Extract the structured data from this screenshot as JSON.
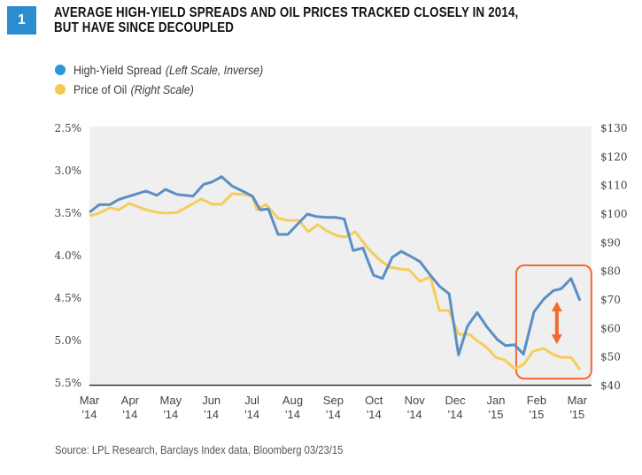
{
  "figure": {
    "number": "1",
    "title_line1": "AVERAGE HIGH-YIELD SPREADS AND OIL PRICES TRACKED CLOSELY IN 2014,",
    "title_line2": "BUT HAVE SINCE DECOUPLED",
    "source": "Source: LPL Research, Barclays Index data, Bloomberg   03/23/15"
  },
  "legend": [
    {
      "label": "High-Yield Spread",
      "note": "(Left Scale, Inverse)",
      "color": "#5b8ec4"
    },
    {
      "label": "Price of Oil",
      "note": "(Right Scale)",
      "color": "#f4cd5a"
    }
  ],
  "colors": {
    "badge": "#2b8dd0",
    "plot_bg": "#efefef",
    "highlight": "#f26b32",
    "spread": "#5b8ec4",
    "oil": "#f4cd5a"
  },
  "chart_data": {
    "type": "line",
    "title": "Average High-Yield Spreads and Oil Prices Tracked Closely in 2014, But Have Since Decoupled",
    "x_unit": "months since Mar 2014",
    "x_range": [
      0,
      12.2
    ],
    "x_ticks": [
      {
        "pos": 0,
        "line1": "Mar",
        "line2": "'14"
      },
      {
        "pos": 1,
        "line1": "Apr",
        "line2": "'14"
      },
      {
        "pos": 2,
        "line1": "May",
        "line2": "'14"
      },
      {
        "pos": 3,
        "line1": "Jun",
        "line2": "'14"
      },
      {
        "pos": 4,
        "line1": "Jul",
        "line2": "'14"
      },
      {
        "pos": 5,
        "line1": "Aug",
        "line2": "'14"
      },
      {
        "pos": 6,
        "line1": "Sep",
        "line2": "'14"
      },
      {
        "pos": 7,
        "line1": "Oct",
        "line2": "'14"
      },
      {
        "pos": 8,
        "line1": "Nov",
        "line2": "'14"
      },
      {
        "pos": 9,
        "line1": "Dec",
        "line2": "'14"
      },
      {
        "pos": 10,
        "line1": "Jan",
        "line2": "'15"
      },
      {
        "pos": 11,
        "line1": "Feb",
        "line2": "'15"
      },
      {
        "pos": 12,
        "line1": "Mar",
        "line2": "'15"
      }
    ],
    "y_left": {
      "label": "High-Yield Spread (Left Scale, Inverse)",
      "range": [
        2.5,
        5.5
      ],
      "inverse": true,
      "ticks": [
        "2.5%",
        "3.0%",
        "3.5%",
        "4.0%",
        "4.5%",
        "5.0%",
        "5.5%"
      ],
      "tick_values": [
        2.5,
        3.0,
        3.5,
        4.0,
        4.5,
        5.0,
        5.5
      ]
    },
    "y_right": {
      "label": "Price of Oil (Right Scale)",
      "range": [
        40,
        130
      ],
      "ticks": [
        "$130",
        "$120",
        "$110",
        "$100",
        "$90",
        "$80",
        "$70",
        "$60",
        "$50",
        "$40"
      ],
      "tick_values": [
        130,
        120,
        110,
        100,
        90,
        80,
        70,
        60,
        50,
        40
      ]
    },
    "series": [
      {
        "name": "High-Yield Spread",
        "axis": "left",
        "unit": "%",
        "x": [
          0,
          0.24,
          0.5,
          0.72,
          0.98,
          1.39,
          1.66,
          1.87,
          2.16,
          2.55,
          2.81,
          3.03,
          3.25,
          3.51,
          3.81,
          4.01,
          4.2,
          4.4,
          4.64,
          4.88,
          5.12,
          5.36,
          5.58,
          5.84,
          6.06,
          6.27,
          6.49,
          6.73,
          6.99,
          7.21,
          7.45,
          7.67,
          7.91,
          8.13,
          8.37,
          8.61,
          8.85,
          9.08,
          9.3,
          9.54,
          9.78,
          10.04,
          10.24,
          10.46,
          10.68,
          10.94,
          11.18,
          11.42,
          11.61,
          11.85,
          12.07
        ],
        "values": [
          3.49,
          3.4,
          3.4,
          3.34,
          3.3,
          3.24,
          3.29,
          3.22,
          3.28,
          3.3,
          3.16,
          3.13,
          3.07,
          3.18,
          3.25,
          3.3,
          3.46,
          3.45,
          3.75,
          3.75,
          3.63,
          3.51,
          3.54,
          3.55,
          3.55,
          3.57,
          3.94,
          3.91,
          4.23,
          4.27,
          4.02,
          3.95,
          4.01,
          4.07,
          4.22,
          4.36,
          4.45,
          5.17,
          4.83,
          4.67,
          4.84,
          4.99,
          5.06,
          5.05,
          5.16,
          4.66,
          4.51,
          4.41,
          4.39,
          4.27,
          4.53
        ]
      },
      {
        "name": "Price of Oil",
        "axis": "right",
        "unit": "$",
        "x": [
          0,
          0.24,
          0.5,
          0.72,
          0.98,
          1.39,
          1.66,
          1.87,
          2.16,
          2.44,
          2.75,
          3.03,
          3.25,
          3.51,
          3.81,
          4.01,
          4.12,
          4.34,
          4.64,
          4.88,
          5.16,
          5.38,
          5.62,
          5.84,
          6.12,
          6.3,
          6.54,
          6.84,
          7.12,
          7.39,
          7.65,
          7.86,
          8.13,
          8.39,
          8.61,
          8.85,
          9.08,
          9.35,
          9.56,
          9.78,
          10.0,
          10.22,
          10.46,
          10.68,
          10.92,
          11.18,
          11.42,
          11.61,
          11.85,
          12.07
        ],
        "values": [
          99.4,
          100.3,
          102.2,
          101.5,
          103.7,
          101.5,
          100.6,
          100.3,
          100.6,
          102.8,
          105.3,
          103.4,
          103.4,
          107.1,
          106.8,
          106.2,
          101.5,
          103.4,
          98.5,
          97.8,
          97.8,
          93.8,
          96.3,
          94.1,
          92.3,
          92.0,
          93.8,
          88.2,
          84.2,
          81.4,
          80.8,
          80.5,
          76.5,
          78.0,
          66.3,
          66.3,
          57.9,
          57.9,
          55.5,
          53.3,
          49.9,
          49.0,
          45.9,
          47.4,
          52.1,
          53.0,
          50.8,
          49.9,
          49.9,
          45.6
        ]
      }
    ],
    "annotations": [
      {
        "type": "highlight-box",
        "x_range": [
          10.5,
          12.35
        ],
        "note": "decoupling period, Feb–Mar 2015"
      },
      {
        "type": "double-arrow",
        "x": 11.5,
        "note": "gap between spread and oil price"
      }
    ],
    "grid": false,
    "legend_position": "top-left"
  }
}
